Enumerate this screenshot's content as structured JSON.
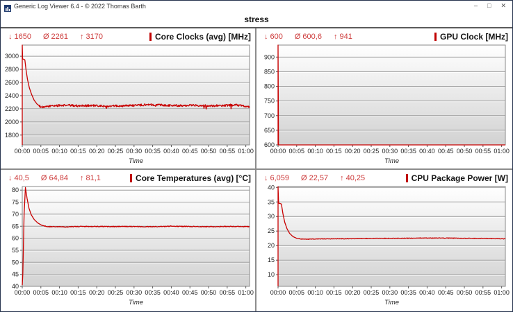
{
  "window": {
    "title": "Generic Log Viewer 6.4 - © 2022 Thomas Barth",
    "controls": {
      "minimize": "–",
      "maximize": "□",
      "close": "✕"
    }
  },
  "header": {
    "title": "stress"
  },
  "stats_symbols": {
    "min": "↓",
    "avg": "Ø",
    "max": "↑"
  },
  "colors": {
    "accent_red": "#c00000",
    "stats_red": "#cd3b3b",
    "grid_line": "#9b9b9b",
    "divider": "#8c8c8c",
    "window_border": "#26334d",
    "plot_gradient_top": "#ffffff",
    "plot_gradient_bottom": "#d2d2d2"
  },
  "chart_data": [
    {
      "type": "line",
      "title": "Core Clocks (avg) [MHz]",
      "stats": {
        "min": "1650",
        "avg": "2261",
        "max": "3170"
      },
      "x": {
        "label": "Time",
        "range_minutes": [
          0,
          61
        ],
        "tick_interval_minutes": 5,
        "ticks": [
          "00:00",
          "00:05",
          "00:10",
          "00:15",
          "00:20",
          "00:25",
          "00:30",
          "00:35",
          "00:40",
          "00:45",
          "00:50",
          "00:55",
          "01:00"
        ]
      },
      "y": {
        "range": [
          1650,
          3170
        ],
        "ticks": [
          1800,
          2000,
          2200,
          2400,
          2600,
          2800,
          3000
        ]
      },
      "line_color": "#c80000",
      "keypoints": [
        [
          0,
          1650
        ],
        [
          0,
          3170
        ],
        [
          0.1,
          2960
        ],
        [
          0.7,
          2945
        ],
        [
          1.0,
          2800
        ],
        [
          1.4,
          2650
        ],
        [
          1.9,
          2520
        ],
        [
          2.5,
          2420
        ],
        [
          3.2,
          2330
        ],
        [
          4.0,
          2270
        ],
        [
          5.0,
          2230
        ],
        [
          5.8,
          2218
        ],
        [
          6.5,
          2235
        ],
        [
          8,
          2245
        ],
        [
          12,
          2255
        ],
        [
          15,
          2245
        ],
        [
          18,
          2250
        ],
        [
          22,
          2240
        ],
        [
          26,
          2245
        ],
        [
          30,
          2250
        ],
        [
          34,
          2265
        ],
        [
          38,
          2255
        ],
        [
          42,
          2250
        ],
        [
          46,
          2255
        ],
        [
          50,
          2245
        ],
        [
          54,
          2250
        ],
        [
          57,
          2260
        ],
        [
          59,
          2245
        ],
        [
          60.5,
          2235
        ],
        [
          61,
          2225
        ]
      ],
      "noise": {
        "amp": 16,
        "start": 4.5,
        "spikes": 60
      }
    },
    {
      "type": "line",
      "title": "GPU Clock [MHz]",
      "stats": {
        "min": "600",
        "avg": "600,6",
        "max": "941"
      },
      "x": {
        "label": "Time",
        "range_minutes": [
          0,
          61
        ],
        "tick_interval_minutes": 5,
        "ticks": [
          "00:00",
          "00:05",
          "00:10",
          "00:15",
          "00:20",
          "00:25",
          "00:30",
          "00:35",
          "00:40",
          "00:45",
          "00:50",
          "00:55",
          "01:00"
        ]
      },
      "y": {
        "range": [
          600,
          941
        ],
        "ticks": [
          600,
          650,
          700,
          750,
          800,
          850,
          900
        ]
      },
      "line_color": "#c80000",
      "keypoints": [
        [
          0,
          600
        ],
        [
          0,
          941
        ],
        [
          0.12,
          600
        ],
        [
          61,
          600
        ]
      ],
      "noise": {
        "amp": 0,
        "start": 0,
        "spikes": 0
      }
    },
    {
      "type": "line",
      "title": "Core Temperatures (avg) [°C]",
      "stats": {
        "min": "40,5",
        "avg": "64,84",
        "max": "81,1"
      },
      "x": {
        "label": "Time",
        "range_minutes": [
          0,
          61
        ],
        "tick_interval_minutes": 5,
        "ticks": [
          "00:00",
          "00:05",
          "00:10",
          "00:15",
          "00:20",
          "00:25",
          "00:30",
          "00:35",
          "00:40",
          "00:45",
          "00:50",
          "00:55",
          "01:00"
        ]
      },
      "y": {
        "range": [
          40,
          81.5
        ],
        "ticks": [
          40,
          45,
          50,
          55,
          60,
          65,
          70,
          75,
          80
        ]
      },
      "line_color": "#c80000",
      "keypoints": [
        [
          0,
          40.5
        ],
        [
          0.15,
          45
        ],
        [
          0.5,
          70
        ],
        [
          0.85,
          81.1
        ],
        [
          1.3,
          76.5
        ],
        [
          1.8,
          72.5
        ],
        [
          2.4,
          69.8
        ],
        [
          3.2,
          67.8
        ],
        [
          4.2,
          66.3
        ],
        [
          5.2,
          65.4
        ],
        [
          6.5,
          64.9
        ],
        [
          8,
          64.8
        ],
        [
          12,
          64.7
        ],
        [
          16,
          64.9
        ],
        [
          20,
          64.9
        ],
        [
          24,
          64.8
        ],
        [
          28,
          64.9
        ],
        [
          32,
          64.8
        ],
        [
          36,
          64.8
        ],
        [
          40,
          65.0
        ],
        [
          44,
          64.9
        ],
        [
          48,
          64.8
        ],
        [
          52,
          64.8
        ],
        [
          56,
          64.9
        ],
        [
          61,
          64.8
        ]
      ],
      "noise": {
        "amp": 0.18,
        "start": 6,
        "spikes": 0
      }
    },
    {
      "type": "line",
      "title": "CPU Package Power [W]",
      "stats": {
        "min": "6,059",
        "avg": "22,57",
        "max": "40,25"
      },
      "x": {
        "label": "Time",
        "range_minutes": [
          0,
          61
        ],
        "tick_interval_minutes": 5,
        "ticks": [
          "00:00",
          "00:05",
          "00:10",
          "00:15",
          "00:20",
          "00:25",
          "00:30",
          "00:35",
          "00:40",
          "00:45",
          "00:50",
          "00:55",
          "01:00"
        ]
      },
      "y": {
        "range": [
          6,
          40.3
        ],
        "ticks": [
          10,
          15,
          20,
          25,
          30,
          35,
          40
        ]
      },
      "line_color": "#c80000",
      "keypoints": [
        [
          0,
          6.06
        ],
        [
          0,
          40.25
        ],
        [
          0.15,
          34.6
        ],
        [
          0.9,
          34.3
        ],
        [
          1.3,
          31
        ],
        [
          1.8,
          28
        ],
        [
          2.4,
          25.8
        ],
        [
          3.1,
          24.2
        ],
        [
          4,
          23.1
        ],
        [
          5,
          22.5
        ],
        [
          6,
          22.25
        ],
        [
          8,
          22.2
        ],
        [
          12,
          22.3
        ],
        [
          16,
          22.35
        ],
        [
          20,
          22.4
        ],
        [
          24,
          22.45
        ],
        [
          28,
          22.5
        ],
        [
          32,
          22.5
        ],
        [
          36,
          22.55
        ],
        [
          40,
          22.6
        ],
        [
          44,
          22.6
        ],
        [
          48,
          22.55
        ],
        [
          52,
          22.5
        ],
        [
          56,
          22.45
        ],
        [
          59,
          22.4
        ],
        [
          61,
          22.3
        ]
      ],
      "noise": {
        "amp": 0.1,
        "start": 5.5,
        "spikes": 0
      }
    }
  ]
}
